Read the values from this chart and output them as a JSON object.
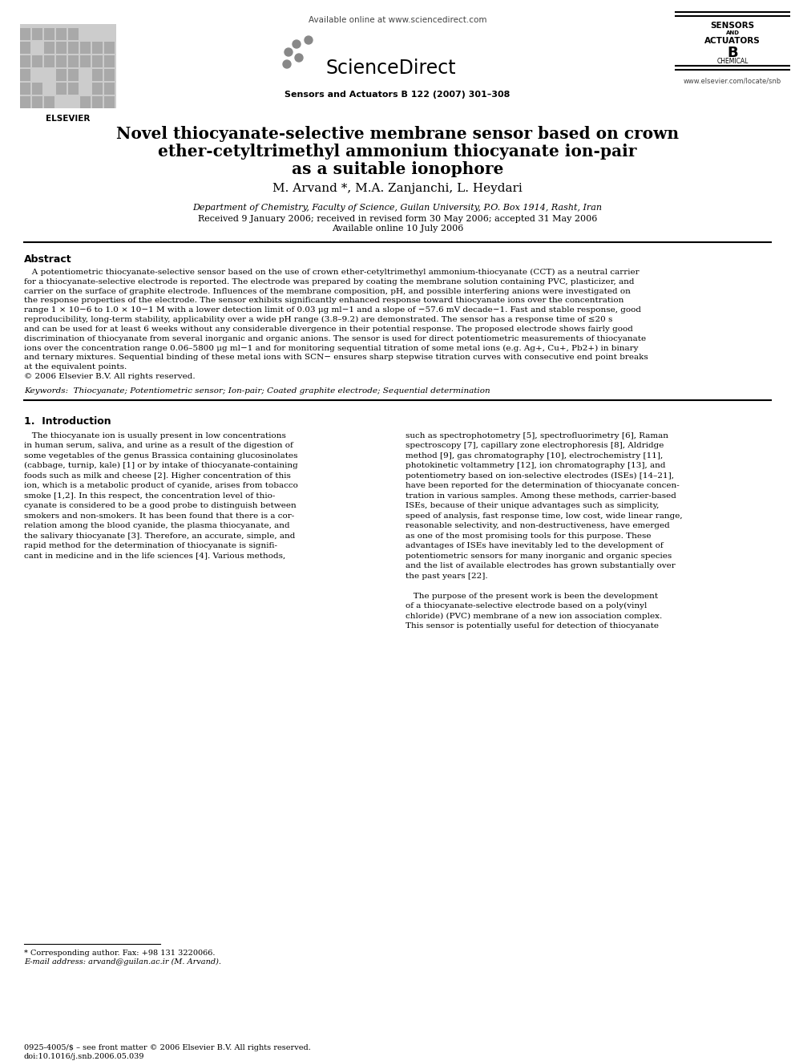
{
  "background_color": "#ffffff",
  "header_available": "Available online at www.sciencedirect.com",
  "header_sciencedirect": "ScienceDirect",
  "header_journal": "Sensors and Actuators B 122 (2007) 301–308",
  "header_elsevier": "ELSEVIER",
  "header_sensors1": "SENSORS",
  "header_sensors2": "AND",
  "header_sensors3": "ACTUATORS",
  "header_sensors4": "B",
  "header_sensors5": "CHEMICAL",
  "header_website": "www.elsevier.com/locate/snb",
  "title_line1": "Novel thiocyanate-selective membrane sensor based on crown",
  "title_line2": "ether-cetyltrimethyl ammonium thiocyanate ion-pair",
  "title_line3": "as a suitable ionophore",
  "authors": "M. Arvand *, M.A. Zanjanchi, L. Heydari",
  "affiliation": "Department of Chemistry, Faculty of Science, Guilan University, P.O. Box 1914, Rasht, Iran",
  "dates": "Received 9 January 2006; received in revised form 30 May 2006; accepted 31 May 2006",
  "available_online": "Available online 10 July 2006",
  "abstract_title": "Abstract",
  "abstract_lines": [
    "   A potentiometric thiocyanate-selective sensor based on the use of crown ether-cetyltrimethyl ammonium-thiocyanate (CCT) as a neutral carrier",
    "for a thiocyanate-selective electrode is reported. The electrode was prepared by coating the membrane solution containing PVC, plasticizer, and",
    "carrier on the surface of graphite electrode. Influences of the membrane composition, pH, and possible interfering anions were investigated on",
    "the response properties of the electrode. The sensor exhibits significantly enhanced response toward thiocyanate ions over the concentration",
    "range 1 × 10−6 to 1.0 × 10−1 M with a lower detection limit of 0.03 μg ml−1 and a slope of −57.6 mV decade−1. Fast and stable response, good",
    "reproducibility, long-term stability, applicability over a wide pH range (3.8–9.2) are demonstrated. The sensor has a response time of ≤20 s",
    "and can be used for at least 6 weeks without any considerable divergence in their potential response. The proposed electrode shows fairly good",
    "discrimination of thiocyanate from several inorganic and organic anions. The sensor is used for direct potentiometric measurements of thiocyanate",
    "ions over the concentration range 0.06–5800 μg ml−1 and for monitoring sequential titration of some metal ions (e.g. Ag+, Cu+, Pb2+) in binary",
    "and ternary mixtures. Sequential binding of these metal ions with SCN− ensures sharp stepwise titration curves with consecutive end point breaks",
    "at the equivalent points.",
    "© 2006 Elsevier B.V. All rights reserved."
  ],
  "keywords": "Keywords:  Thiocyanate; Potentiometric sensor; Ion-pair; Coated graphite electrode; Sequential determination",
  "section1_title": "1.  Introduction",
  "intro_left_lines": [
    "   The thiocyanate ion is usually present in low concentrations",
    "in human serum, saliva, and urine as a result of the digestion of",
    "some vegetables of the genus Brassica containing glucosinolates",
    "(cabbage, turnip, kale) [1] or by intake of thiocyanate-containing",
    "foods such as milk and cheese [2]. Higher concentration of this",
    "ion, which is a metabolic product of cyanide, arises from tobacco",
    "smoke [1,2]. In this respect, the concentration level of thio-",
    "cyanate is considered to be a good probe to distinguish between",
    "smokers and non-smokers. It has been found that there is a cor-",
    "relation among the blood cyanide, the plasma thiocyanate, and",
    "the salivary thiocyanate [3]. Therefore, an accurate, simple, and",
    "rapid method for the determination of thiocyanate is signifi-",
    "cant in medicine and in the life sciences [4]. Various methods,"
  ],
  "intro_right_lines": [
    "such as spectrophotometry [5], spectrofluorimetry [6], Raman",
    "spectroscopy [7], capillary zone electrophoresis [8], Aldridge",
    "method [9], gas chromatography [10], electrochemistry [11],",
    "photokinetic voltammetry [12], ion chromatography [13], and",
    "potentiometry based on ion-selective electrodes (ISEs) [14–21],",
    "have been reported for the determination of thiocyanate concen-",
    "tration in various samples. Among these methods, carrier-based",
    "ISEs, because of their unique advantages such as simplicity,",
    "speed of analysis, fast response time, low cost, wide linear range,",
    "reasonable selectivity, and non-destructiveness, have emerged",
    "as one of the most promising tools for this purpose. These",
    "advantages of ISEs have inevitably led to the development of",
    "potentiometric sensors for many inorganic and organic species",
    "and the list of available electrodes has grown substantially over",
    "the past years [22].",
    "",
    "   The purpose of the present work is been the development",
    "of a thiocyanate-selective electrode based on a poly(vinyl",
    "chloride) (PVC) membrane of a new ion association complex.",
    "This sensor is potentially useful for detection of thiocyanate"
  ],
  "footnote_line": "* Corresponding author. Fax: +98 131 3220066.",
  "footnote_email": "E-mail address: arvand@guilan.ac.ir (M. Arvand).",
  "footer_matter": "0925-4005/$ – see front matter © 2006 Elsevier B.V. All rights reserved.",
  "footer_doi": "doi:10.1016/j.snb.2006.05.039"
}
